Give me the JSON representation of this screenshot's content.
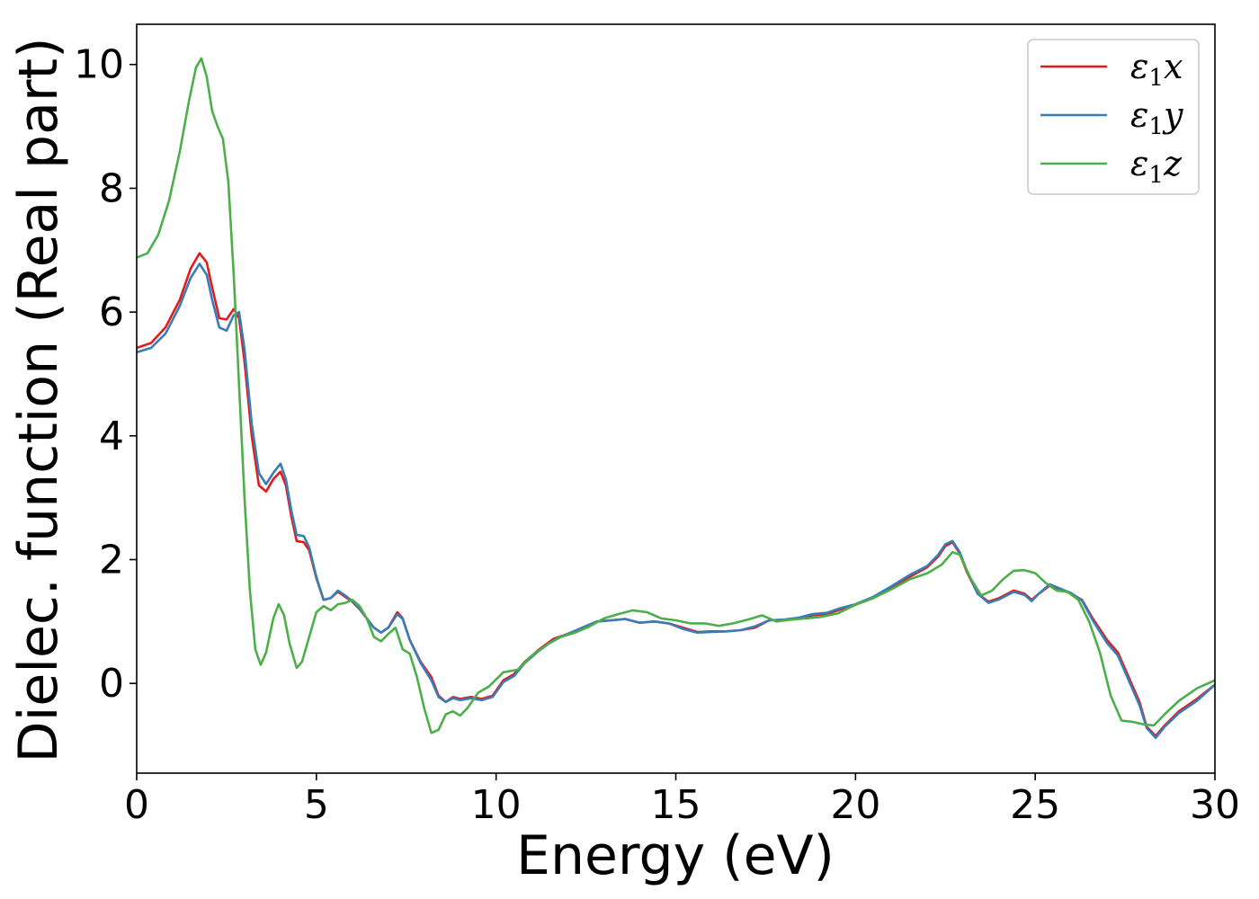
{
  "chart_data": {
    "type": "line",
    "xlabel": "Energy (eV)",
    "ylabel": "Dielec. function (Real part)",
    "xlim": [
      0,
      30
    ],
    "ylim": [
      -1.45,
      10.65
    ],
    "xticks": [
      0,
      5,
      10,
      15,
      20,
      25,
      30
    ],
    "yticks": [
      0,
      2,
      4,
      6,
      8,
      10
    ],
    "grid": false,
    "legend_placement": "top-right",
    "series": [
      {
        "name": "ε1x",
        "label_base": "ε",
        "label_sub": "1",
        "label_var": "x",
        "color": "#e41a1c",
        "points": [
          [
            0,
            5.42
          ],
          [
            0.4,
            5.5
          ],
          [
            0.8,
            5.75
          ],
          [
            1.2,
            6.2
          ],
          [
            1.5,
            6.7
          ],
          [
            1.75,
            6.95
          ],
          [
            1.95,
            6.8
          ],
          [
            2.1,
            6.4
          ],
          [
            2.3,
            5.9
          ],
          [
            2.5,
            5.88
          ],
          [
            2.7,
            6.05
          ],
          [
            2.85,
            5.9
          ],
          [
            3.0,
            5.2
          ],
          [
            3.2,
            4.0
          ],
          [
            3.4,
            3.2
          ],
          [
            3.6,
            3.1
          ],
          [
            3.8,
            3.3
          ],
          [
            4.0,
            3.42
          ],
          [
            4.15,
            3.2
          ],
          [
            4.3,
            2.7
          ],
          [
            4.45,
            2.3
          ],
          [
            4.65,
            2.28
          ],
          [
            4.8,
            2.15
          ],
          [
            5.0,
            1.7
          ],
          [
            5.2,
            1.35
          ],
          [
            5.4,
            1.38
          ],
          [
            5.6,
            1.48
          ],
          [
            5.8,
            1.4
          ],
          [
            6.0,
            1.32
          ],
          [
            6.2,
            1.2
          ],
          [
            6.4,
            1.05
          ],
          [
            6.6,
            0.9
          ],
          [
            6.8,
            0.82
          ],
          [
            7.0,
            0.9
          ],
          [
            7.25,
            1.15
          ],
          [
            7.4,
            1.05
          ],
          [
            7.6,
            0.7
          ],
          [
            7.9,
            0.35
          ],
          [
            8.2,
            0.1
          ],
          [
            8.4,
            -0.2
          ],
          [
            8.6,
            -0.3
          ],
          [
            8.8,
            -0.22
          ],
          [
            9.0,
            -0.25
          ],
          [
            9.3,
            -0.22
          ],
          [
            9.6,
            -0.25
          ],
          [
            9.9,
            -0.2
          ],
          [
            10.2,
            0.05
          ],
          [
            10.5,
            0.15
          ],
          [
            10.8,
            0.35
          ],
          [
            11.2,
            0.55
          ],
          [
            11.6,
            0.72
          ],
          [
            12.0,
            0.8
          ],
          [
            12.4,
            0.9
          ],
          [
            12.8,
            1.0
          ],
          [
            13.2,
            1.02
          ],
          [
            13.6,
            1.04
          ],
          [
            14.0,
            0.98
          ],
          [
            14.4,
            1.0
          ],
          [
            14.8,
            0.97
          ],
          [
            15.2,
            0.9
          ],
          [
            15.6,
            0.83
          ],
          [
            16.0,
            0.84
          ],
          [
            16.4,
            0.84
          ],
          [
            16.8,
            0.86
          ],
          [
            17.2,
            0.9
          ],
          [
            17.6,
            1.02
          ],
          [
            18.0,
            1.03
          ],
          [
            18.4,
            1.05
          ],
          [
            18.8,
            1.1
          ],
          [
            19.2,
            1.12
          ],
          [
            19.6,
            1.2
          ],
          [
            20.0,
            1.27
          ],
          [
            20.5,
            1.38
          ],
          [
            21.0,
            1.55
          ],
          [
            21.5,
            1.72
          ],
          [
            22.0,
            1.88
          ],
          [
            22.3,
            2.05
          ],
          [
            22.5,
            2.22
          ],
          [
            22.7,
            2.28
          ],
          [
            22.9,
            2.1
          ],
          [
            23.1,
            1.8
          ],
          [
            23.4,
            1.45
          ],
          [
            23.7,
            1.32
          ],
          [
            24.0,
            1.38
          ],
          [
            24.4,
            1.5
          ],
          [
            24.7,
            1.45
          ],
          [
            24.9,
            1.35
          ],
          [
            25.1,
            1.45
          ],
          [
            25.4,
            1.58
          ],
          [
            25.7,
            1.52
          ],
          [
            26.0,
            1.45
          ],
          [
            26.3,
            1.35
          ],
          [
            26.6,
            1.05
          ],
          [
            27.0,
            0.7
          ],
          [
            27.3,
            0.5
          ],
          [
            27.6,
            0.1
          ],
          [
            27.9,
            -0.3
          ],
          [
            28.1,
            -0.7
          ],
          [
            28.35,
            -0.85
          ],
          [
            28.6,
            -0.68
          ],
          [
            29.0,
            -0.45
          ],
          [
            29.5,
            -0.25
          ],
          [
            30.0,
            -0.02
          ]
        ]
      },
      {
        "name": "ε1y",
        "label_base": "ε",
        "label_sub": "1",
        "label_var": "y",
        "color": "#377eb8",
        "points": [
          [
            0,
            5.35
          ],
          [
            0.4,
            5.42
          ],
          [
            0.8,
            5.65
          ],
          [
            1.2,
            6.1
          ],
          [
            1.5,
            6.55
          ],
          [
            1.75,
            6.78
          ],
          [
            1.95,
            6.6
          ],
          [
            2.1,
            6.2
          ],
          [
            2.3,
            5.75
          ],
          [
            2.5,
            5.7
          ],
          [
            2.7,
            5.95
          ],
          [
            2.85,
            6.0
          ],
          [
            3.0,
            5.4
          ],
          [
            3.2,
            4.2
          ],
          [
            3.4,
            3.4
          ],
          [
            3.6,
            3.22
          ],
          [
            3.8,
            3.4
          ],
          [
            4.0,
            3.55
          ],
          [
            4.15,
            3.3
          ],
          [
            4.3,
            2.8
          ],
          [
            4.45,
            2.4
          ],
          [
            4.65,
            2.38
          ],
          [
            4.8,
            2.2
          ],
          [
            5.0,
            1.72
          ],
          [
            5.2,
            1.35
          ],
          [
            5.4,
            1.38
          ],
          [
            5.6,
            1.5
          ],
          [
            5.8,
            1.42
          ],
          [
            6.0,
            1.33
          ],
          [
            6.2,
            1.21
          ],
          [
            6.4,
            1.05
          ],
          [
            6.6,
            0.9
          ],
          [
            6.8,
            0.82
          ],
          [
            7.0,
            0.9
          ],
          [
            7.25,
            1.12
          ],
          [
            7.4,
            1.04
          ],
          [
            7.6,
            0.7
          ],
          [
            7.9,
            0.33
          ],
          [
            8.2,
            0.05
          ],
          [
            8.4,
            -0.22
          ],
          [
            8.6,
            -0.3
          ],
          [
            8.8,
            -0.24
          ],
          [
            9.0,
            -0.27
          ],
          [
            9.3,
            -0.24
          ],
          [
            9.6,
            -0.27
          ],
          [
            9.9,
            -0.22
          ],
          [
            10.2,
            0.02
          ],
          [
            10.5,
            0.12
          ],
          [
            10.8,
            0.33
          ],
          [
            11.2,
            0.53
          ],
          [
            11.6,
            0.7
          ],
          [
            12.0,
            0.8
          ],
          [
            12.4,
            0.9
          ],
          [
            12.8,
            1.0
          ],
          [
            13.2,
            1.02
          ],
          [
            13.6,
            1.04
          ],
          [
            14.0,
            0.98
          ],
          [
            14.4,
            1.0
          ],
          [
            14.8,
            0.97
          ],
          [
            15.2,
            0.88
          ],
          [
            15.6,
            0.82
          ],
          [
            16.0,
            0.83
          ],
          [
            16.4,
            0.84
          ],
          [
            16.8,
            0.86
          ],
          [
            17.2,
            0.92
          ],
          [
            17.6,
            1.02
          ],
          [
            18.0,
            1.03
          ],
          [
            18.4,
            1.06
          ],
          [
            18.8,
            1.12
          ],
          [
            19.2,
            1.14
          ],
          [
            19.6,
            1.22
          ],
          [
            20.0,
            1.28
          ],
          [
            20.5,
            1.4
          ],
          [
            21.0,
            1.57
          ],
          [
            21.5,
            1.75
          ],
          [
            22.0,
            1.9
          ],
          [
            22.3,
            2.08
          ],
          [
            22.5,
            2.25
          ],
          [
            22.7,
            2.3
          ],
          [
            22.9,
            2.12
          ],
          [
            23.1,
            1.82
          ],
          [
            23.4,
            1.45
          ],
          [
            23.7,
            1.3
          ],
          [
            24.0,
            1.36
          ],
          [
            24.4,
            1.48
          ],
          [
            24.7,
            1.43
          ],
          [
            24.9,
            1.33
          ],
          [
            25.1,
            1.45
          ],
          [
            25.4,
            1.6
          ],
          [
            25.7,
            1.53
          ],
          [
            26.0,
            1.46
          ],
          [
            26.3,
            1.34
          ],
          [
            26.6,
            1.02
          ],
          [
            27.0,
            0.65
          ],
          [
            27.3,
            0.45
          ],
          [
            27.6,
            0.05
          ],
          [
            27.9,
            -0.35
          ],
          [
            28.1,
            -0.72
          ],
          [
            28.35,
            -0.88
          ],
          [
            28.6,
            -0.7
          ],
          [
            29.0,
            -0.48
          ],
          [
            29.5,
            -0.28
          ],
          [
            30.0,
            -0.02
          ]
        ]
      },
      {
        "name": "ε1z",
        "label_base": "ε",
        "label_sub": "1",
        "label_var": "z",
        "color": "#4daf4a",
        "points": [
          [
            0,
            6.88
          ],
          [
            0.3,
            6.95
          ],
          [
            0.6,
            7.25
          ],
          [
            0.9,
            7.8
          ],
          [
            1.2,
            8.6
          ],
          [
            1.45,
            9.4
          ],
          [
            1.65,
            9.95
          ],
          [
            1.8,
            10.1
          ],
          [
            1.95,
            9.8
          ],
          [
            2.1,
            9.25
          ],
          [
            2.25,
            9.0
          ],
          [
            2.4,
            8.8
          ],
          [
            2.55,
            8.1
          ],
          [
            2.7,
            6.6
          ],
          [
            2.85,
            4.8
          ],
          [
            3.0,
            3.0
          ],
          [
            3.15,
            1.5
          ],
          [
            3.3,
            0.55
          ],
          [
            3.45,
            0.3
          ],
          [
            3.6,
            0.5
          ],
          [
            3.8,
            1.05
          ],
          [
            3.95,
            1.28
          ],
          [
            4.1,
            1.1
          ],
          [
            4.25,
            0.65
          ],
          [
            4.45,
            0.25
          ],
          [
            4.6,
            0.35
          ],
          [
            4.8,
            0.75
          ],
          [
            5.0,
            1.15
          ],
          [
            5.2,
            1.25
          ],
          [
            5.4,
            1.18
          ],
          [
            5.6,
            1.28
          ],
          [
            5.8,
            1.3
          ],
          [
            6.0,
            1.35
          ],
          [
            6.2,
            1.25
          ],
          [
            6.4,
            1.05
          ],
          [
            6.6,
            0.75
          ],
          [
            6.8,
            0.68
          ],
          [
            7.0,
            0.8
          ],
          [
            7.2,
            0.9
          ],
          [
            7.4,
            0.55
          ],
          [
            7.6,
            0.48
          ],
          [
            7.8,
            0.1
          ],
          [
            8.0,
            -0.4
          ],
          [
            8.2,
            -0.8
          ],
          [
            8.4,
            -0.75
          ],
          [
            8.6,
            -0.5
          ],
          [
            8.8,
            -0.45
          ],
          [
            9.0,
            -0.52
          ],
          [
            9.2,
            -0.4
          ],
          [
            9.5,
            -0.15
          ],
          [
            9.8,
            -0.05
          ],
          [
            10.2,
            0.18
          ],
          [
            10.6,
            0.22
          ],
          [
            11.0,
            0.45
          ],
          [
            11.4,
            0.62
          ],
          [
            11.8,
            0.75
          ],
          [
            12.2,
            0.82
          ],
          [
            12.6,
            0.92
          ],
          [
            13.0,
            1.05
          ],
          [
            13.4,
            1.12
          ],
          [
            13.8,
            1.18
          ],
          [
            14.2,
            1.15
          ],
          [
            14.6,
            1.05
          ],
          [
            15.0,
            1.02
          ],
          [
            15.4,
            0.97
          ],
          [
            15.8,
            0.97
          ],
          [
            16.2,
            0.93
          ],
          [
            16.6,
            0.97
          ],
          [
            17.0,
            1.03
          ],
          [
            17.4,
            1.1
          ],
          [
            17.8,
            1.0
          ],
          [
            18.2,
            1.03
          ],
          [
            18.6,
            1.05
          ],
          [
            19.0,
            1.07
          ],
          [
            19.5,
            1.13
          ],
          [
            20.0,
            1.27
          ],
          [
            20.5,
            1.38
          ],
          [
            21.0,
            1.52
          ],
          [
            21.5,
            1.68
          ],
          [
            22.0,
            1.78
          ],
          [
            22.4,
            1.92
          ],
          [
            22.7,
            2.12
          ],
          [
            22.9,
            2.08
          ],
          [
            23.2,
            1.7
          ],
          [
            23.5,
            1.42
          ],
          [
            23.8,
            1.5
          ],
          [
            24.1,
            1.68
          ],
          [
            24.4,
            1.82
          ],
          [
            24.7,
            1.83
          ],
          [
            25.0,
            1.78
          ],
          [
            25.3,
            1.62
          ],
          [
            25.6,
            1.5
          ],
          [
            25.9,
            1.48
          ],
          [
            26.2,
            1.35
          ],
          [
            26.5,
            1.0
          ],
          [
            26.8,
            0.5
          ],
          [
            27.1,
            -0.2
          ],
          [
            27.4,
            -0.6
          ],
          [
            27.7,
            -0.62
          ],
          [
            28.0,
            -0.66
          ],
          [
            28.3,
            -0.68
          ],
          [
            28.6,
            -0.5
          ],
          [
            29.0,
            -0.28
          ],
          [
            29.5,
            -0.08
          ],
          [
            30.0,
            0.05
          ]
        ]
      }
    ]
  }
}
